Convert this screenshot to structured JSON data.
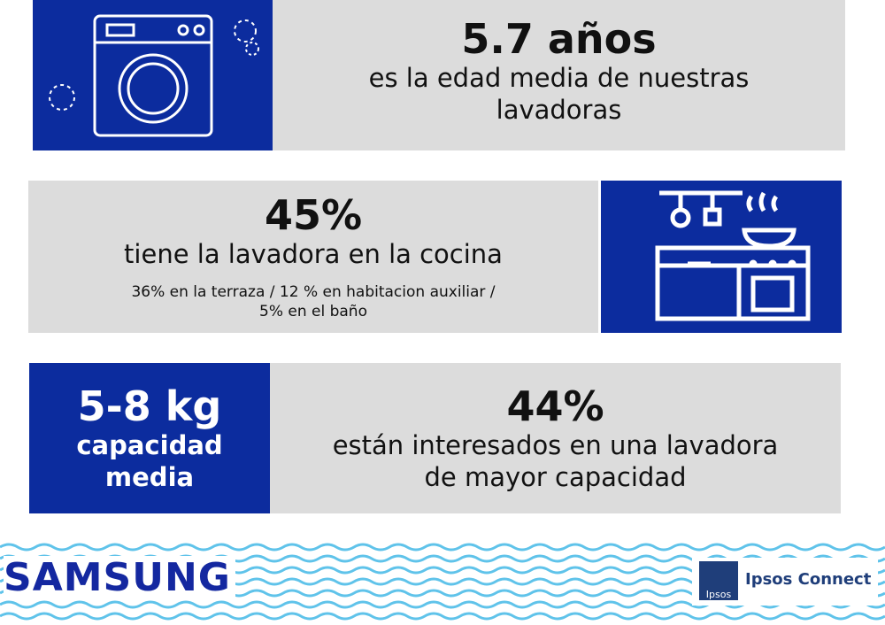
{
  "age_block": {
    "headline": "5.7 años",
    "lines": [
      "es la edad media de nuestras",
      "lavadoras"
    ]
  },
  "location_block": {
    "headline": "45%",
    "subtitle": "tiene la lavadora en la cocina",
    "detail_lines": [
      "36% en la terraza / 12 % en habitacion auxiliar /",
      "5%  en el baño"
    ]
  },
  "capacity_block": {
    "headline": "5-8 kg",
    "lines": [
      "capacidad",
      "media"
    ]
  },
  "interest_block": {
    "headline": "44%",
    "lines": [
      "están interesados en una lavadora",
      "de mayor capacidad"
    ]
  },
  "footer": {
    "brand": "SAMSUNG",
    "partner_logo": "Ipsos",
    "partner": "Ipsos Connect"
  }
}
